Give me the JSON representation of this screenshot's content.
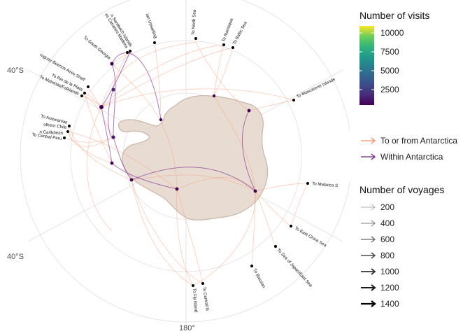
{
  "map": {
    "lat_labels": [
      "40°S",
      "40°S"
    ],
    "lon_label": "180°",
    "destinations": [
      "To North Sea",
      "To Namaqua",
      "To Baltic Sea",
      "To Mascarene Islands",
      "To Malacca S",
      "To East China Sea",
      "To Sea of Japan/East Sea",
      "To Bassian",
      "To Central N",
      "To Fiji Island",
      "To Central Peru",
      "n Caribbean",
      "uthern Chile",
      "To Araucanian",
      "To Malvinas/Falklands",
      "To Rio de la Plata",
      "ruguay-Buenos Aires Shelf",
      "To South Georgia",
      "n Sandwich Islands",
      "es Canaries Madeira",
      "ian Upwelling"
    ],
    "colors": {
      "land": "#e8dcd2",
      "coast": "#c9b6a8",
      "to_or_from": "#fb9a74",
      "within": "#8b3fa0",
      "grid": "#e6e6e6"
    }
  },
  "legend": {
    "visits_title": "Number of visits",
    "visits_ticks": [
      "10000",
      "7500",
      "5000",
      "2500"
    ],
    "route_types": [
      {
        "label": "To or from Antarctica",
        "color": "#fb8c65"
      },
      {
        "label": "Within Antarctica",
        "color": "#7a1f8c"
      }
    ],
    "voyages_title": "Number of voyages",
    "voyages_ticks": [
      "200",
      "400",
      "600",
      "800",
      "1000",
      "1200",
      "1400"
    ]
  }
}
